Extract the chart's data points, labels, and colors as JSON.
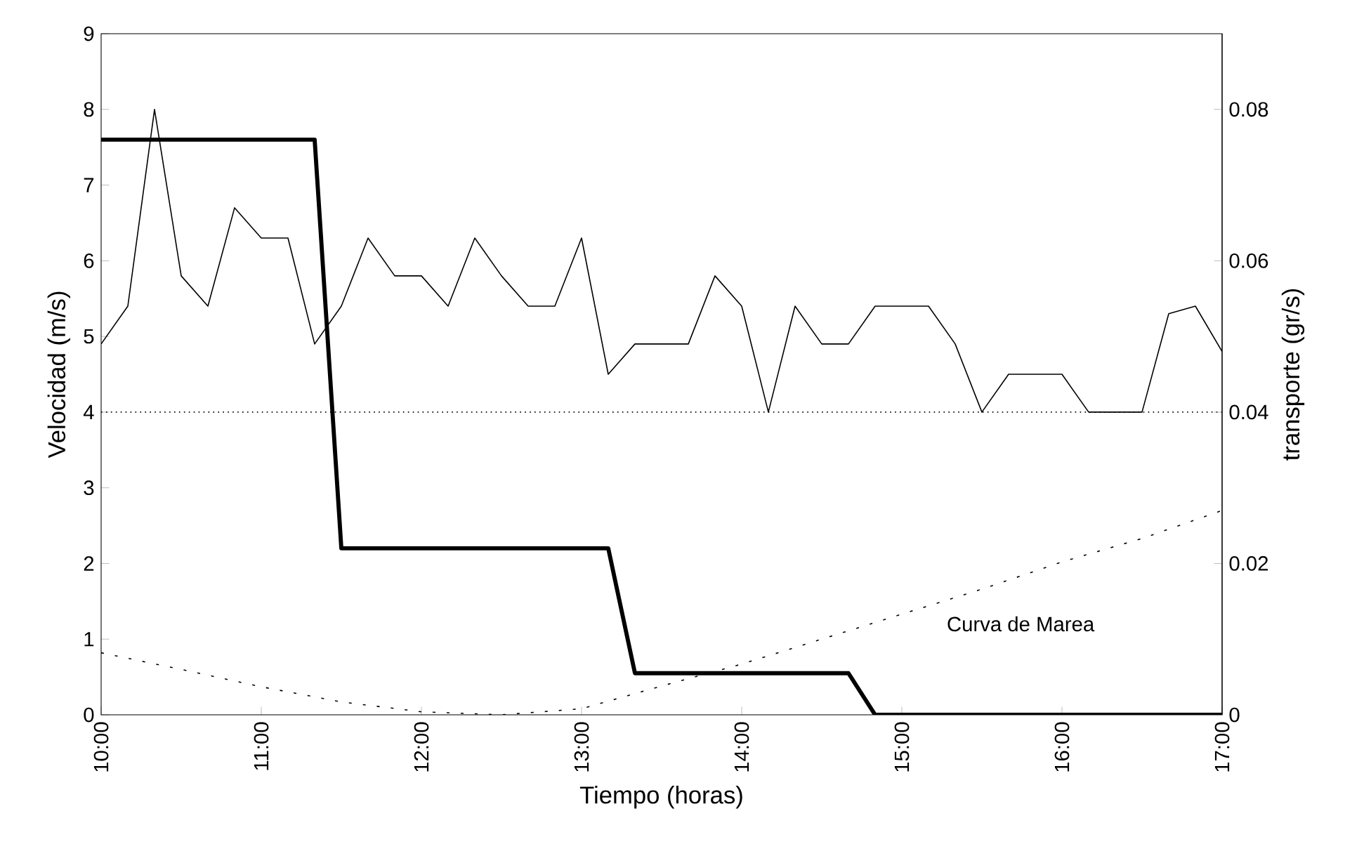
{
  "chart_data": {
    "type": "line",
    "xlabel": "Tiempo (horas)",
    "ylabel": "Velocidad (m/s)",
    "y2label": "transporte (gr/s)",
    "xlim": [
      10,
      17
    ],
    "ylim": [
      0,
      9
    ],
    "y2lim": [
      0,
      0.09
    ],
    "xticks": [
      {
        "value": 10,
        "label": "10:00"
      },
      {
        "value": 11,
        "label": "11:00"
      },
      {
        "value": 12,
        "label": "12:00"
      },
      {
        "value": 13,
        "label": "13:00"
      },
      {
        "value": 14,
        "label": "14:00"
      },
      {
        "value": 15,
        "label": "15:00"
      },
      {
        "value": 16,
        "label": "16:00"
      },
      {
        "value": 17,
        "label": "17:00"
      }
    ],
    "yticks": [
      0,
      1,
      2,
      3,
      4,
      5,
      6,
      7,
      8,
      9
    ],
    "y2ticks": [
      0,
      0.02,
      0.04,
      0.06,
      0.08
    ],
    "series": [
      {
        "color": "#000000",
        "line_style": "solid",
        "x": [
          10,
          10.1667,
          10.3333,
          10.5,
          10.6667,
          10.8333,
          11,
          11.1667,
          11.3333,
          11.5,
          11.6667,
          11.8333,
          12,
          12.1667,
          12.3333,
          12.5,
          12.6667,
          12.8333,
          13,
          13.1667,
          13.3333,
          13.5,
          13.6667,
          13.8333,
          14,
          14.1667,
          14.3333,
          14.5,
          14.6667,
          14.8333,
          15,
          15.1667,
          15.3333,
          15.5,
          15.6667,
          15.8333,
          16,
          16.1667,
          16.3333,
          16.5,
          16.6667,
          16.8333,
          17
        ],
        "values": [
          4.9,
          5.4,
          8.0,
          5.8,
          5.4,
          6.7,
          6.3,
          6.3,
          4.9,
          5.4,
          6.3,
          5.8,
          5.8,
          5.4,
          6.3,
          5.8,
          5.4,
          5.4,
          6.3,
          4.5,
          4.9,
          4.9,
          4.9,
          5.8,
          5.4,
          4.0,
          5.4,
          4.9,
          4.9,
          5.4,
          5.4,
          5.4,
          4.9,
          4.0,
          4.5,
          4.5,
          4.5,
          4.0,
          4.0,
          4.0,
          5.3,
          5.4,
          4.8
        ]
      },
      {
        "color": "#000000",
        "line_style": "solid",
        "axis": "y2",
        "x": [
          10,
          11.3333,
          11.5,
          13.1667,
          13.3333,
          14.6667,
          14.8333,
          17
        ],
        "values": [
          0.076,
          0.076,
          0.022,
          0.022,
          0.0055,
          0.0055,
          0,
          0
        ]
      },
      {
        "name": "Curva de Marea",
        "color": "#000000",
        "line_style": "dashed",
        "x": [
          10,
          10.5,
          11,
          11.5,
          12,
          12.5,
          13,
          13.5,
          14,
          14.5,
          15,
          15.5,
          16,
          16.5,
          17
        ],
        "values": [
          0.82,
          0.6,
          0.37,
          0.17,
          0.04,
          0,
          0.08,
          0.38,
          0.67,
          1.0,
          1.33,
          1.66,
          2.02,
          2.33,
          2.7
        ]
      }
    ],
    "ref_lines": [
      {
        "axis": "y",
        "value": 4,
        "line_style": "dotted",
        "color": "#000000"
      }
    ],
    "marker": "none"
  }
}
